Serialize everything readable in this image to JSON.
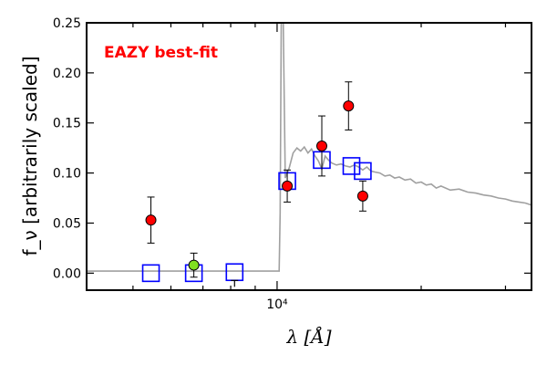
{
  "chart_data": {
    "type": "scatter",
    "title": "",
    "annotation": {
      "text": "EAZY best-fit",
      "color": "#ff0000"
    },
    "xlabel": "λ [Å]",
    "ylabel": "f_ν [arbitrarily scaled]",
    "xscale": "log",
    "xlim": [
      4000,
      34000
    ],
    "ylim": [
      -0.017,
      0.25
    ],
    "x_ticks": [
      {
        "value": 10000,
        "label": "10⁴"
      }
    ],
    "y_ticks": [
      {
        "value": 0.0,
        "label": "0.00"
      },
      {
        "value": 0.05,
        "label": "0.05"
      },
      {
        "value": 0.1,
        "label": "0.10"
      },
      {
        "value": 0.15,
        "label": "0.15"
      },
      {
        "value": 0.2,
        "label": "0.20"
      },
      {
        "value": 0.25,
        "label": "0.25"
      }
    ],
    "grid": false,
    "series": [
      {
        "kind": "line",
        "color": "#a0a0a0",
        "x": [
          4000,
          5000,
          6000,
          7000,
          8000,
          9000,
          9800,
          10100,
          10150,
          10200,
          10300,
          10400,
          10600,
          10800,
          11000,
          11200,
          11400,
          11600,
          11800,
          12000,
          12200,
          12400,
          12600,
          12800,
          13000,
          13300,
          13600,
          13900,
          14200,
          14500,
          14800,
          15100,
          15400,
          15700,
          16000,
          16400,
          16800,
          17200,
          17600,
          18000,
          18500,
          19000,
          19500,
          20000,
          20500,
          21000,
          21500,
          22000,
          23000,
          24000,
          25000,
          26000,
          27000,
          28000,
          29000,
          30000,
          31000,
          32000,
          33000,
          34000
        ],
        "y": [
          0.002,
          0.002,
          0.002,
          0.002,
          0.002,
          0.002,
          0.002,
          0.002,
          0.06,
          0.25,
          0.25,
          0.095,
          0.105,
          0.12,
          0.125,
          0.122,
          0.126,
          0.12,
          0.124,
          0.117,
          0.112,
          0.104,
          0.117,
          0.113,
          0.11,
          0.108,
          0.109,
          0.107,
          0.106,
          0.108,
          0.106,
          0.103,
          0.106,
          0.102,
          0.101,
          0.1,
          0.097,
          0.098,
          0.095,
          0.096,
          0.093,
          0.094,
          0.09,
          0.091,
          0.088,
          0.089,
          0.085,
          0.087,
          0.083,
          0.084,
          0.081,
          0.08,
          0.078,
          0.077,
          0.075,
          0.074,
          0.072,
          0.071,
          0.07,
          0.068
        ]
      },
      {
        "kind": "model-squares",
        "color": "#0000ff",
        "x": [
          5450,
          6700,
          8150,
          10500,
          12400,
          14300,
          15100
        ],
        "y": [
          0.0,
          0.0,
          0.001,
          0.092,
          0.113,
          0.107,
          0.102
        ]
      },
      {
        "kind": "detections",
        "color": "#ff0000",
        "x": [
          5450,
          10500,
          12400,
          14100,
          15100
        ],
        "y": [
          0.053,
          0.087,
          0.127,
          0.167,
          0.077
        ],
        "yerr": [
          0.023,
          0.016,
          0.03,
          0.024,
          0.015
        ]
      },
      {
        "kind": "other-point",
        "color": "#80e020",
        "x": [
          6700
        ],
        "y": [
          0.008
        ],
        "yerr": [
          0.012
        ]
      },
      {
        "kind": "upper-limit",
        "color": "#000000",
        "x": [
          8150
        ],
        "y": [
          -0.01
        ]
      }
    ]
  }
}
